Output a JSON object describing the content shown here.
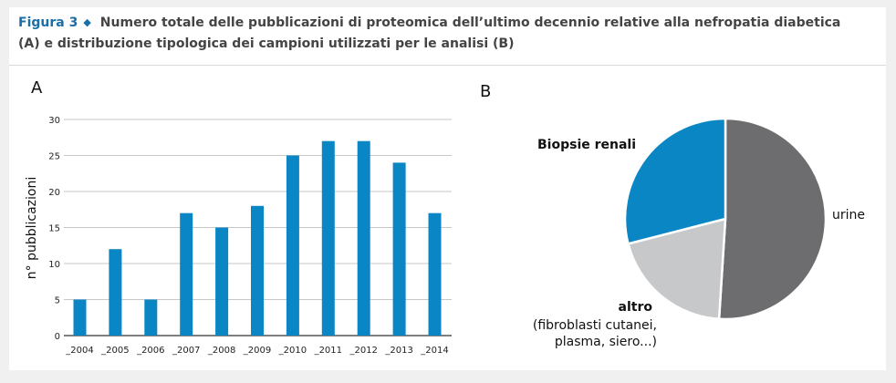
{
  "figure": {
    "label": "Figura 3",
    "caption_line1": "Numero totale delle pubblicazioni di proteomica dell’ultimo decennio relative alla nefropatia diabetica",
    "caption_line2": "(A) e distribuzione tipologica dei campioni utilizzati per le analisi (B)"
  },
  "colors": {
    "accent": "#1a6fa8",
    "bar": "#0a86c4",
    "pie_urine": "#6d6d70",
    "pie_biopsie": "#0a86c4",
    "pie_altro": "#c7c8ca"
  },
  "chart_data": [
    {
      "panel": "A",
      "type": "bar",
      "ylabel": "n° pubblicazioni",
      "categories": [
        "_2004",
        "_2005",
        "_2006",
        "_2007",
        "_2008",
        "_2009",
        "_2010",
        "_2011",
        "_2012",
        "_2013",
        "_2014"
      ],
      "values": [
        5,
        12,
        5,
        17,
        15,
        18,
        25,
        27,
        27,
        24,
        17
      ],
      "ylim": [
        0,
        30
      ],
      "yticks": [
        0,
        5,
        10,
        15,
        20,
        25,
        30
      ],
      "grid": true
    },
    {
      "panel": "B",
      "type": "pie",
      "slices": [
        {
          "label": "urine",
          "value": 51
        },
        {
          "label": "altro",
          "note_line1": "(fibroblasti cutanei,",
          "note_line2": "plasma, siero...)",
          "value": 20
        },
        {
          "label": "Biopsie renali",
          "value": 29
        }
      ]
    }
  ]
}
